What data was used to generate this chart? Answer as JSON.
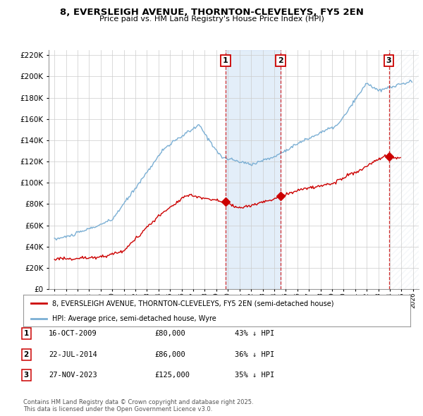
{
  "title": "8, EVERSLEIGH AVENUE, THORNTON-CLEVELEYS, FY5 2EN",
  "subtitle": "Price paid vs. HM Land Registry's House Price Index (HPI)",
  "legend_red": "8, EVERSLEIGH AVENUE, THORNTON-CLEVELEYS, FY5 2EN (semi-detached house)",
  "legend_blue": "HPI: Average price, semi-detached house, Wyre",
  "transactions": [
    {
      "num": 1,
      "date": "16-OCT-2009",
      "price": "£80,000",
      "pct": "43% ↓ HPI",
      "year": 2009.79,
      "price_val": 80000
    },
    {
      "num": 2,
      "date": "22-JUL-2014",
      "price": "£86,000",
      "pct": "36% ↓ HPI",
      "year": 2014.55,
      "price_val": 86000
    },
    {
      "num": 3,
      "date": "27-NOV-2023",
      "price": "£125,000",
      "pct": "35% ↓ HPI",
      "year": 2023.91,
      "price_val": 125000
    }
  ],
  "footnote1": "Contains HM Land Registry data © Crown copyright and database right 2025.",
  "footnote2": "This data is licensed under the Open Government Licence v3.0.",
  "xlim": [
    1994.5,
    2026.5
  ],
  "ylim": [
    0,
    225000
  ],
  "background_color": "#ffffff",
  "grid_color": "#cccccc",
  "red_color": "#cc0000",
  "blue_color": "#7bafd4",
  "shade_color": "#ddeeff",
  "marker_color": "#cc0000"
}
